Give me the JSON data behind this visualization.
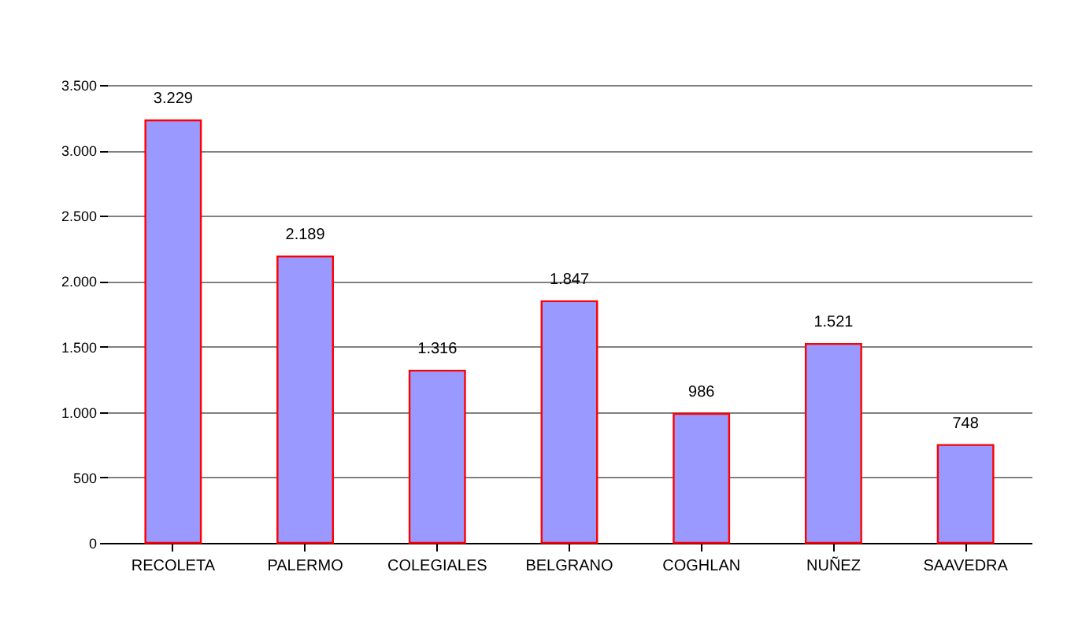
{
  "chart_data": {
    "type": "bar",
    "categories": [
      "RECOLETA",
      "PALERMO",
      "COLEGIALES",
      "BELGRANO",
      "COGHLAN",
      "NUÑEZ",
      "SAAVEDRA"
    ],
    "values": [
      3229,
      2189,
      1316,
      1847,
      986,
      1521,
      748
    ],
    "value_labels": [
      "3.229",
      "2.189",
      "1.316",
      "1.847",
      "986",
      "1.521",
      "748"
    ],
    "color": "#9999ff",
    "ylim": [
      0,
      3500
    ],
    "yticks": [
      0,
      {
        "value": 500,
        "label": "500"
      },
      {
        "value": 1000,
        "label": "1.000"
      },
      {
        "value": 1500,
        "label": "1.500"
      },
      {
        "value": 2000,
        "label": "2.000"
      },
      {
        "value": 2500,
        "label": "2.500"
      },
      {
        "value": 3000,
        "label": "3.000"
      },
      {
        "value": 3500,
        "label": "3.500"
      }
    ],
    "grid": "y"
  }
}
